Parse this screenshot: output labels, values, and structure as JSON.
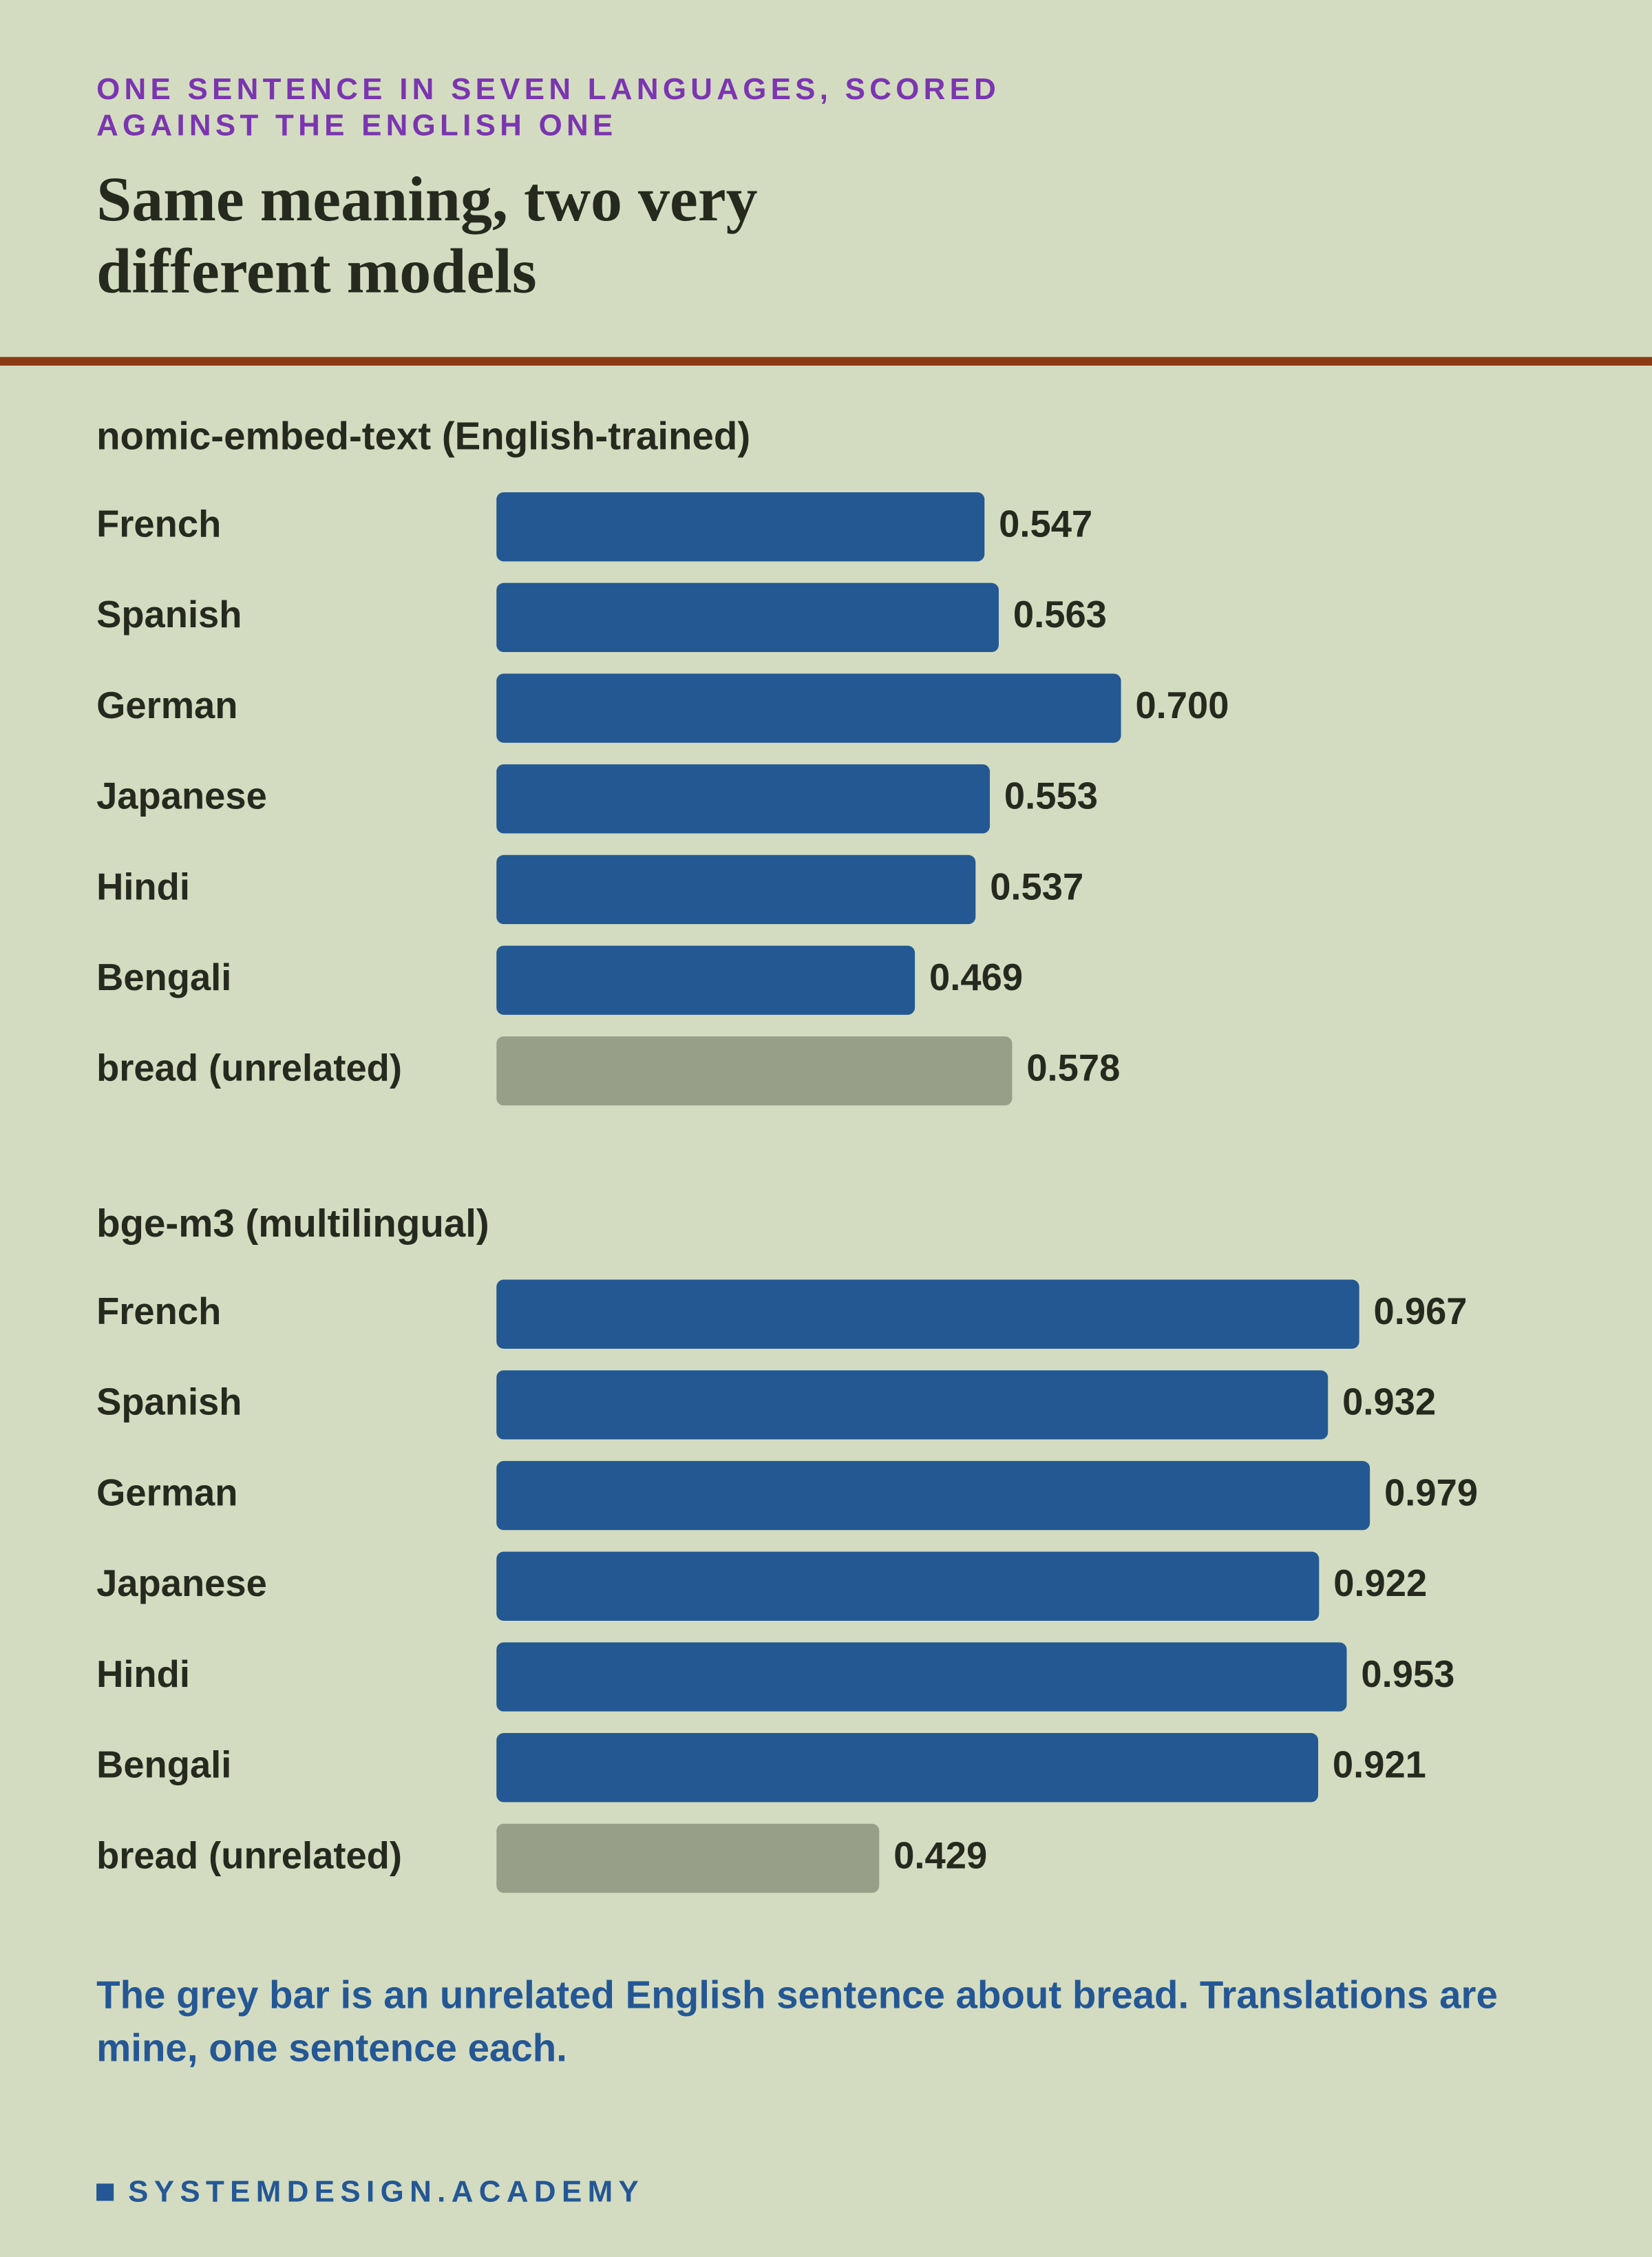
{
  "header": {
    "kicker": "ONE SENTENCE IN SEVEN LANGUAGES, SCORED AGAINST THE ENGLISH ONE",
    "title": "Same meaning, two very different models"
  },
  "chart_data": [
    {
      "type": "bar",
      "orientation": "horizontal",
      "title": "nomic-embed-text (English-trained)",
      "categories": [
        "French",
        "Spanish",
        "German",
        "Japanese",
        "Hindi",
        "Bengali",
        "bread (unrelated)"
      ],
      "values": [
        0.547,
        0.563,
        0.7,
        0.553,
        0.537,
        0.469,
        0.578
      ],
      "value_labels": [
        "0.547",
        "0.563",
        "0.700",
        "0.553",
        "0.537",
        "0.469",
        "0.578"
      ],
      "colors": [
        "#235892",
        "#235892",
        "#235892",
        "#235892",
        "#235892",
        "#235892",
        "#989f88"
      ],
      "xlim": [
        0,
        1
      ]
    },
    {
      "type": "bar",
      "orientation": "horizontal",
      "title": "bge-m3 (multilingual)",
      "categories": [
        "French",
        "Spanish",
        "German",
        "Japanese",
        "Hindi",
        "Bengali",
        "bread (unrelated)"
      ],
      "values": [
        0.967,
        0.932,
        0.979,
        0.922,
        0.953,
        0.921,
        0.429
      ],
      "value_labels": [
        "0.967",
        "0.932",
        "0.979",
        "0.922",
        "0.953",
        "0.921",
        "0.429"
      ],
      "colors": [
        "#235892",
        "#235892",
        "#235892",
        "#235892",
        "#235892",
        "#235892",
        "#989f88"
      ],
      "xlim": [
        0,
        1
      ]
    }
  ],
  "note": "The grey bar is an unrelated English sentence about bread. Translations are mine, one sentence each.",
  "brand": "SYSTEMDESIGN.ACADEMY"
}
